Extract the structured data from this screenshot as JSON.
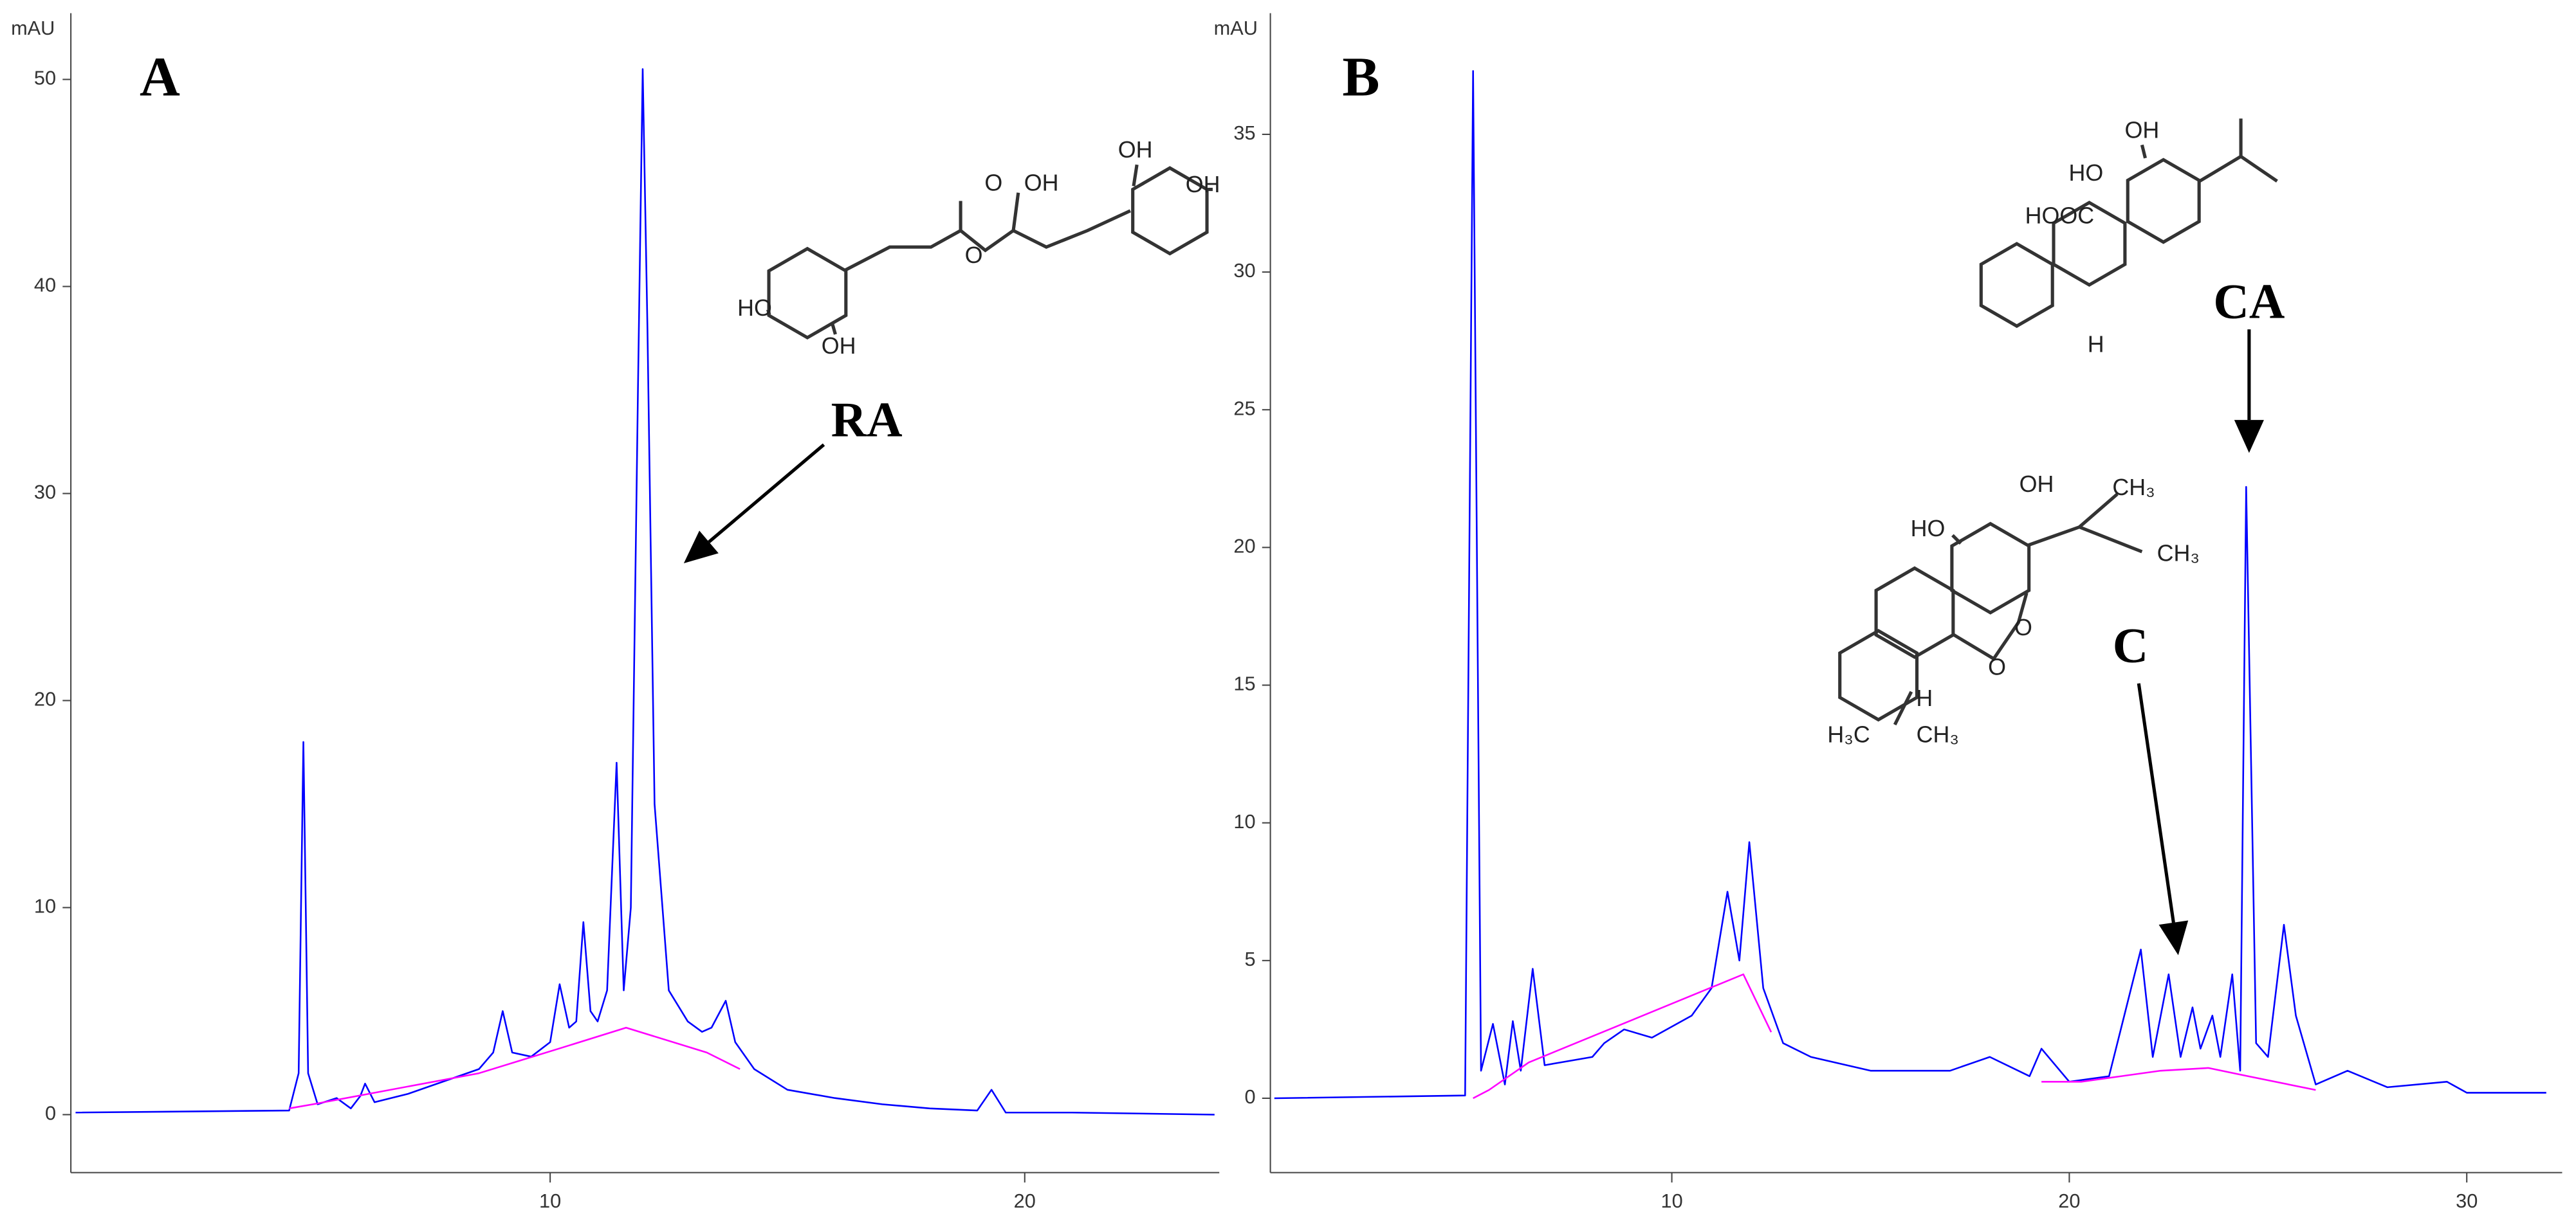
{
  "chart_data": [
    {
      "type": "line",
      "label": "A",
      "y_label": "mAU",
      "xlim": [
        -0.1,
        24.1
      ],
      "ylim": [
        -2.8,
        53.2
      ],
      "xticks": [
        10,
        20
      ],
      "yticks": [
        0,
        10,
        20,
        30,
        40,
        50
      ],
      "series": [
        {
          "color": "#0000ff",
          "x": [
            0,
            4.5,
            4.7,
            4.8,
            4.9,
            5.1,
            5.5,
            5.8,
            6.0,
            6.1,
            6.3,
            7,
            8,
            8.5,
            8.8,
            9.0,
            9.2,
            9.6,
            10.0,
            10.2,
            10.4,
            10.55,
            10.7,
            10.85,
            11.0,
            11.2,
            11.4,
            11.55,
            11.7,
            11.85,
            11.95,
            12.05,
            12.2,
            12.5,
            12.9,
            13.2,
            13.4,
            13.7,
            13.9,
            14.3,
            15,
            16,
            17,
            18,
            19.0,
            19.3,
            19.6,
            21,
            24
          ],
          "values": [
            0.1,
            0.2,
            2,
            18,
            2,
            0.5,
            0.8,
            0.3,
            0.9,
            1.5,
            0.6,
            1,
            1.8,
            2.2,
            3.0,
            5.0,
            3.0,
            2.8,
            3.5,
            6.3,
            4.2,
            4.5,
            9.3,
            5.0,
            4.5,
            6,
            17,
            6,
            10,
            35,
            50.5,
            38,
            15,
            6,
            4.5,
            4,
            4.2,
            5.5,
            3.5,
            2.2,
            1.2,
            0.8,
            0.5,
            0.3,
            0.2,
            1.2,
            0.1,
            0.1,
            0.0
          ]
        },
        {
          "color": "#ff00ff",
          "x": [
            4.5,
            5,
            8.5,
            10.2,
            11.6,
            13.3,
            14.0
          ],
          "values": [
            0.3,
            0.5,
            2,
            3.2,
            4.2,
            3.0,
            2.2
          ]
        }
      ],
      "annotations": [
        "RA"
      ],
      "structure_labels": [
        "O",
        "OH",
        "OH",
        "OH",
        "HO",
        "OH",
        "O"
      ]
    },
    {
      "type": "line",
      "label": "B",
      "y_label": "mAU",
      "xlim": [
        -0.1,
        32.4
      ],
      "ylim": [
        -2.7,
        39.4
      ],
      "xticks": [
        10,
        20,
        30
      ],
      "yticks": [
        0,
        5,
        10,
        15,
        20,
        25,
        30,
        35
      ],
      "series": [
        {
          "color": "#0000ff",
          "x": [
            0,
            4.8,
            5.0,
            5.2,
            5.5,
            5.8,
            6.0,
            6.2,
            6.5,
            6.8,
            8,
            8.3,
            8.8,
            9.5,
            10.5,
            11,
            11.4,
            11.7,
            11.95,
            12.3,
            12.8,
            13.5,
            15,
            17,
            18,
            19,
            19.3,
            20,
            21,
            21.8,
            22.1,
            22.5,
            22.8,
            23.1,
            23.3,
            23.6,
            23.8,
            24.1,
            24.3,
            24.45,
            24.7,
            25.0,
            25.4,
            25.7,
            26.2,
            27,
            28,
            29.5,
            30,
            32
          ],
          "values": [
            0,
            0.1,
            37.3,
            1,
            2.7,
            0.5,
            2.8,
            1,
            4.7,
            1.2,
            1.5,
            2,
            2.5,
            2.2,
            3,
            4,
            7.5,
            5,
            9.3,
            4,
            2,
            1.5,
            1,
            1,
            1.5,
            0.8,
            1.8,
            0.6,
            0.8,
            5.4,
            1.5,
            4.5,
            1.5,
            3.3,
            1.8,
            3,
            1.5,
            4.5,
            1,
            22.2,
            2,
            1.5,
            6.3,
            3,
            0.5,
            1,
            0.4,
            0.6,
            0.2,
            0.2
          ]
        },
        {
          "color": "#ff00ff",
          "x": [
            5,
            5.4,
            6.4,
            11.8,
            12.5,
            16,
            19.3,
            20.3,
            22.3,
            23.5,
            24.5,
            26.2
          ],
          "values": [
            0,
            0.3,
            1.3,
            4.5,
            2.4,
            null,
            0.6,
            0.6,
            1.0,
            1.1,
            0.8,
            0.3
          ]
        }
      ],
      "annotations": [
        "CA",
        "C"
      ],
      "structure_labels": [
        "OH",
        "HO",
        "HOOC",
        "H",
        "OH",
        "CH₃",
        "HO",
        "CH₃",
        "O",
        "O",
        "H",
        "H₃C",
        "CH₃"
      ]
    }
  ]
}
